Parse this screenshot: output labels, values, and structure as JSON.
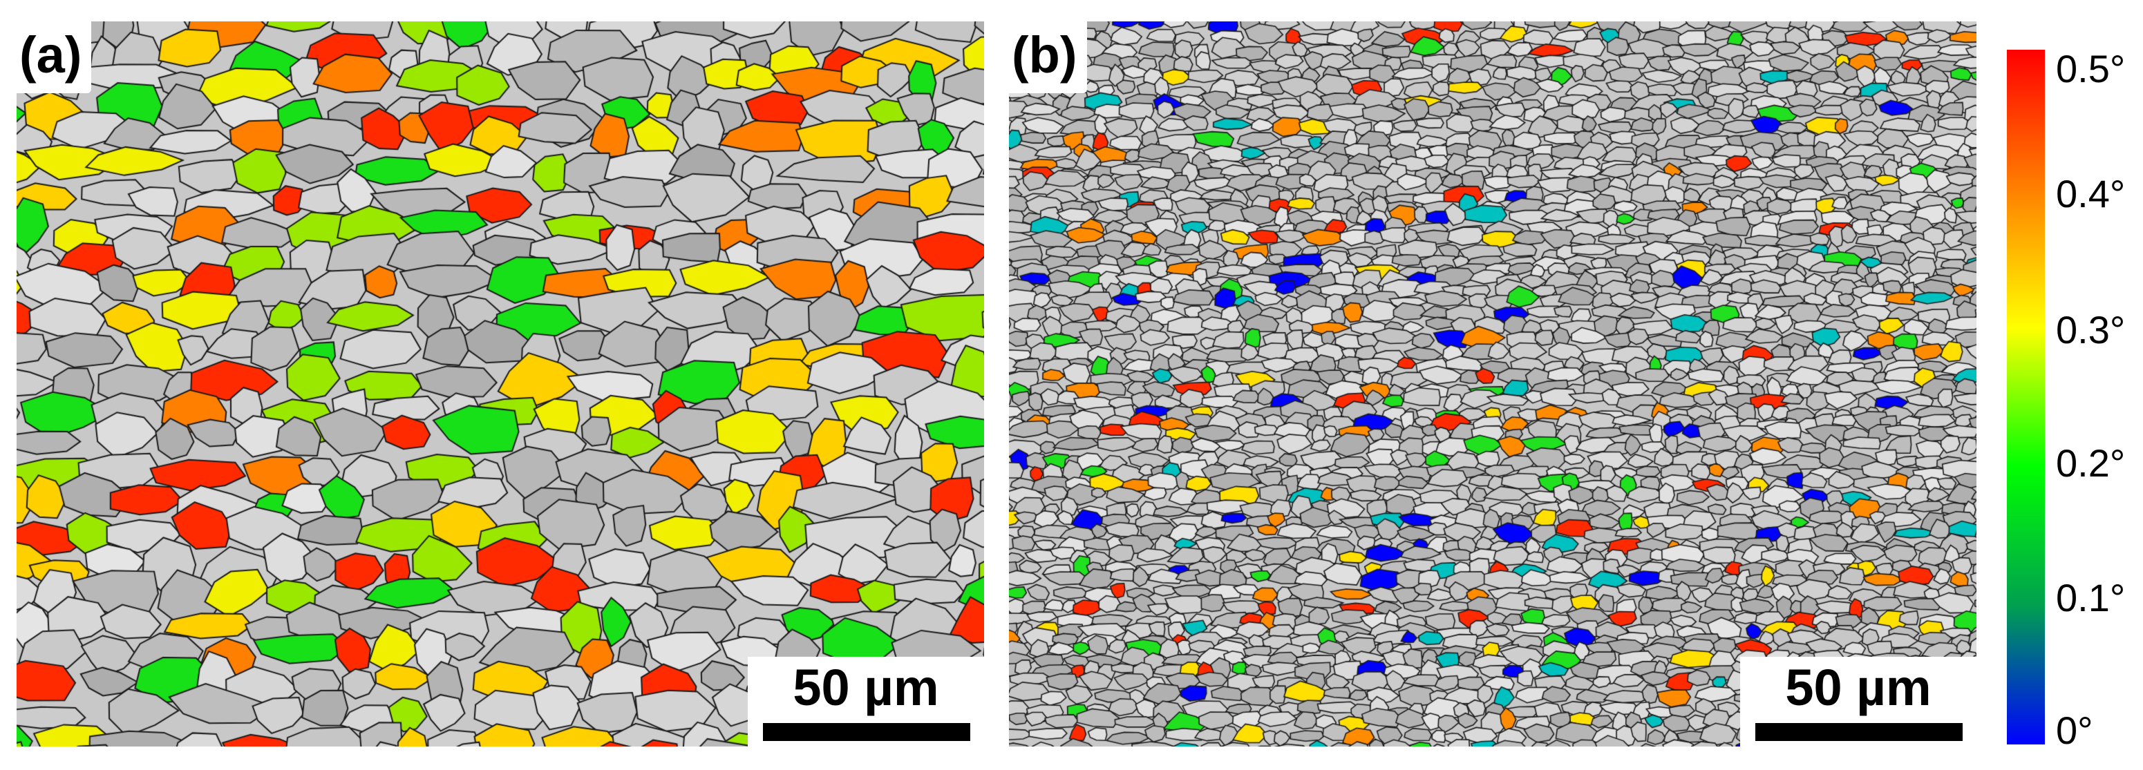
{
  "figure": {
    "panels": [
      {
        "label": "(a)",
        "scale_bar_text": "50 µm",
        "grain_texture": "coarser elongated grains",
        "highlight_colors": [
          "#ff2a00",
          "#ff7f00",
          "#ffd000",
          "#18e018",
          "#9ae800",
          "#f0f000"
        ]
      },
      {
        "label": "(b)",
        "scale_bar_text": "50 µm",
        "grain_texture": "fine elongated grains",
        "highlight_colors": [
          "#ff2a00",
          "#ff8c00",
          "#ffe000",
          "#20e020",
          "#0000ff",
          "#00c0c0"
        ]
      }
    ],
    "colorbar": {
      "title": "",
      "tick_labels": [
        "0.5°",
        "0.4°",
        "0.3°",
        "0.2°",
        "0.1°",
        "0°"
      ],
      "max_value": 0.5,
      "min_value": 0,
      "colors_top_to_bottom": [
        "#ff0000",
        "#ffff00",
        "#00ff00",
        "#00a050",
        "#0000ff"
      ]
    },
    "grain_boundary_color": "#1a1a1a",
    "background_grain_gray": "#c8c8c8"
  }
}
